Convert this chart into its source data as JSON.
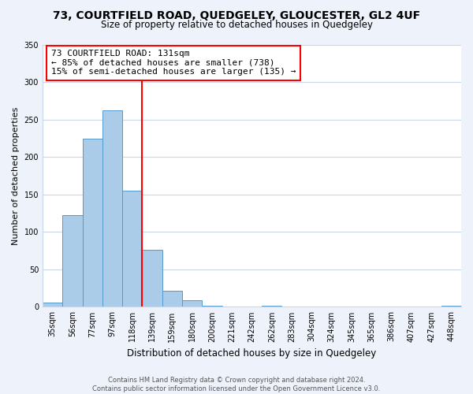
{
  "title": "73, COURTFIELD ROAD, QUEDGELEY, GLOUCESTER, GL2 4UF",
  "subtitle": "Size of property relative to detached houses in Quedgeley",
  "xlabel": "Distribution of detached houses by size in Quedgeley",
  "ylabel": "Number of detached properties",
  "footnote1": "Contains HM Land Registry data © Crown copyright and database right 2024.",
  "footnote2": "Contains public sector information licensed under the Open Government Licence v3.0.",
  "bin_labels": [
    "35sqm",
    "56sqm",
    "77sqm",
    "97sqm",
    "118sqm",
    "139sqm",
    "159sqm",
    "180sqm",
    "200sqm",
    "221sqm",
    "242sqm",
    "262sqm",
    "283sqm",
    "304sqm",
    "324sqm",
    "345sqm",
    "365sqm",
    "386sqm",
    "407sqm",
    "427sqm",
    "448sqm"
  ],
  "bar_values": [
    6,
    122,
    224,
    262,
    155,
    76,
    21,
    9,
    2,
    0,
    0,
    1,
    0,
    0,
    0,
    0,
    0,
    0,
    0,
    0,
    2
  ],
  "bar_color": "#aacce8",
  "bar_edge_color": "#5599cc",
  "vline_color": "red",
  "vline_pos": 4.5,
  "annotation_title": "73 COURTFIELD ROAD: 131sqm",
  "annotation_line1": "← 85% of detached houses are smaller (738)",
  "annotation_line2": "15% of semi-detached houses are larger (135) →",
  "annotation_box_color": "red",
  "ylim": [
    0,
    350
  ],
  "yticks": [
    0,
    50,
    100,
    150,
    200,
    250,
    300,
    350
  ],
  "background_color": "#eef2fb",
  "plot_background": "#ffffff",
  "grid_color": "#c8d8ea",
  "title_fontsize": 10,
  "subtitle_fontsize": 8.5,
  "ylabel_fontsize": 8,
  "xlabel_fontsize": 8.5,
  "tick_fontsize": 7,
  "footnote_fontsize": 6,
  "ann_fontsize": 8
}
